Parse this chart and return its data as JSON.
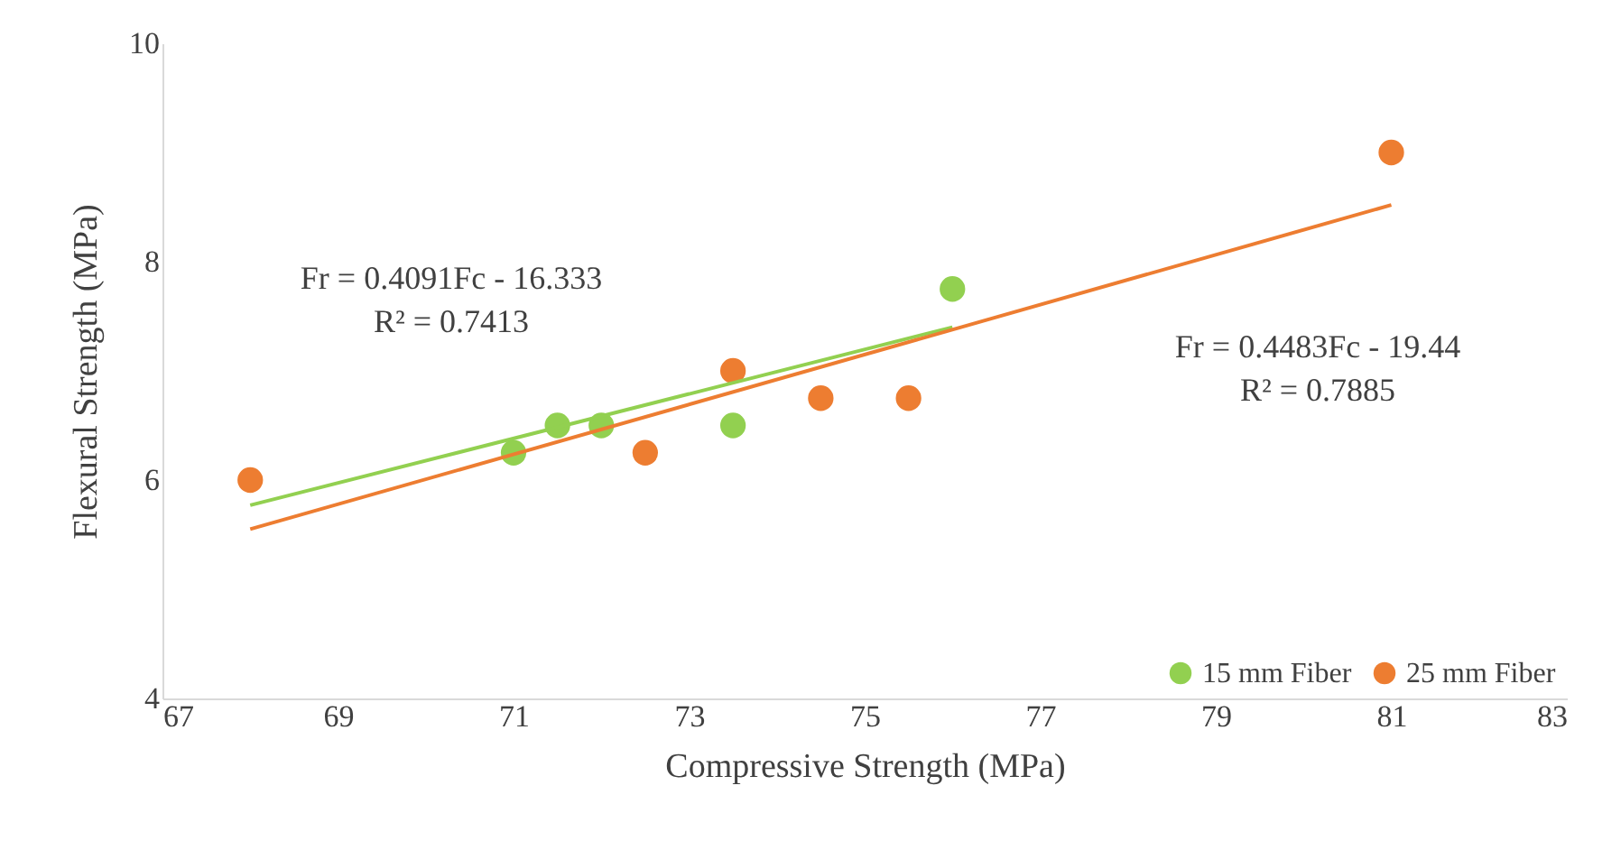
{
  "chart_data": {
    "type": "scatter",
    "xlabel": "Compressive Strength (MPa)",
    "ylabel": "Flexural Strength (MPa)",
    "xlim": [
      67,
      83
    ],
    "xticks": [
      67,
      69,
      71,
      73,
      75,
      77,
      79,
      81,
      83
    ],
    "ylim": [
      4,
      10
    ],
    "yticks": [
      4,
      6,
      8,
      10
    ],
    "grid": false,
    "legend": "bottom right",
    "annotations": [
      "Fr = 0.4091Fc - 16.333\nR² = 0.7413",
      "Fr = 0.4483Fc - 19.44\nR² = 0.7885"
    ],
    "series": [
      {
        "name": "15 mm Fiber",
        "color": "#92d050",
        "marker": "circle",
        "x": [
          71,
          71.5,
          72,
          73.5,
          76
        ],
        "values": [
          6.25,
          6.5,
          6.5,
          6.5,
          7.75
        ]
      },
      {
        "name": "25 mm Fiber",
        "color": "#ed7d31",
        "marker": "circle",
        "x": [
          68,
          72.5,
          73.5,
          74.5,
          75.5,
          81
        ],
        "values": [
          6,
          6.25,
          7,
          6.75,
          6.75,
          9
        ]
      },
      {
        "type": "line",
        "color": "#92d050",
        "marker": "none",
        "x": [
          68,
          76
        ],
        "values": [
          5.77,
          7.4
        ]
      },
      {
        "type": "line",
        "color": "#ed7d31",
        "marker": "none",
        "x": [
          68,
          81
        ],
        "values": [
          5.55,
          8.52
        ]
      }
    ]
  }
}
